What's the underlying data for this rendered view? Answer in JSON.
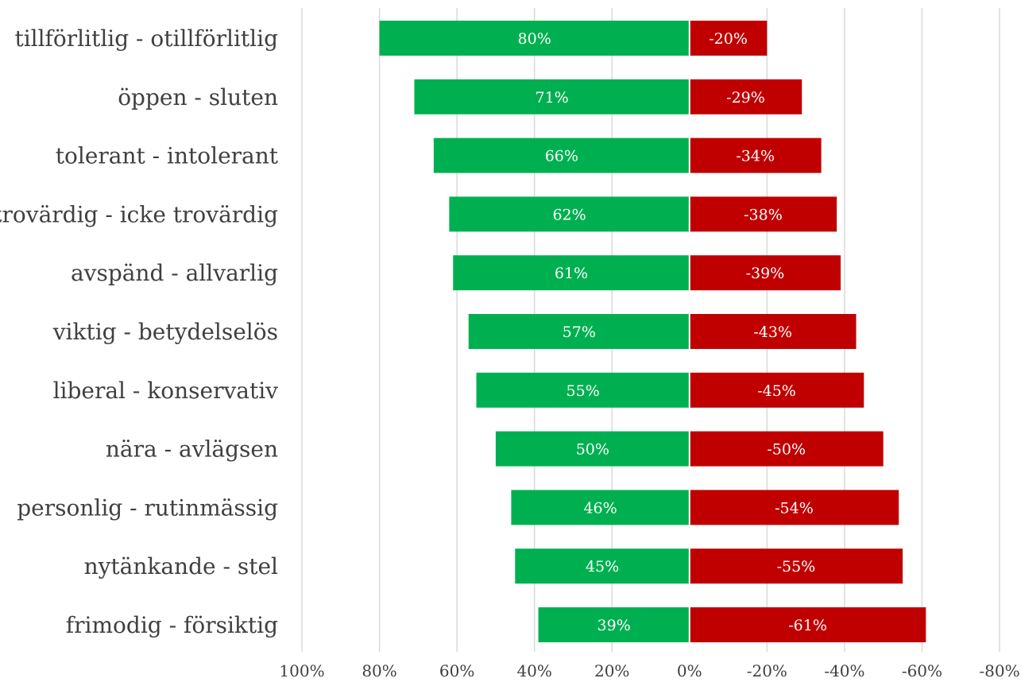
{
  "chart_data": {
    "type": "bar",
    "orientation": "horizontal",
    "layout": "diverging",
    "categories": [
      "tillförlitlig - otillförlitlig",
      "öppen - sluten",
      "tolerant - intolerant",
      "trovärdig - icke trovärdig",
      "avspänd - allvarlig",
      "viktig - betydelselös",
      "liberal - konservativ",
      "nära - avlägsen",
      "personlig - rutinmässig",
      "nytänkande - stel",
      "frimodig - försiktig"
    ],
    "series": [
      {
        "values": [
          80,
          71,
          66,
          62,
          61,
          57,
          55,
          50,
          46,
          45,
          39
        ],
        "labels": [
          "80%",
          "71%",
          "66%",
          "62%",
          "61%",
          "57%",
          "55%",
          "50%",
          "46%",
          "45%",
          "39%"
        ],
        "color": "#00b050"
      },
      {
        "values": [
          -20,
          -29,
          -34,
          -38,
          -39,
          -43,
          -45,
          -50,
          -54,
          -55,
          -61
        ],
        "labels": [
          "-20%",
          "-29%",
          "-34%",
          "-38%",
          "-39%",
          "-43%",
          "-45%",
          "-50%",
          "-54%",
          "-55%",
          "-61%"
        ],
        "color": "#c00000"
      }
    ],
    "x_ticks": [
      100,
      80,
      60,
      40,
      20,
      0,
      -20,
      -40,
      -60,
      -80
    ],
    "x_tick_labels": [
      "100%",
      "80%",
      "60%",
      "40%",
      "20%",
      "0%",
      "-20%",
      "-40%",
      "-60%",
      "-80%"
    ],
    "xlim": [
      100,
      -80
    ],
    "x_axis_reversed": true,
    "grid": true,
    "title": "",
    "xlabel": "",
    "ylabel": ""
  }
}
